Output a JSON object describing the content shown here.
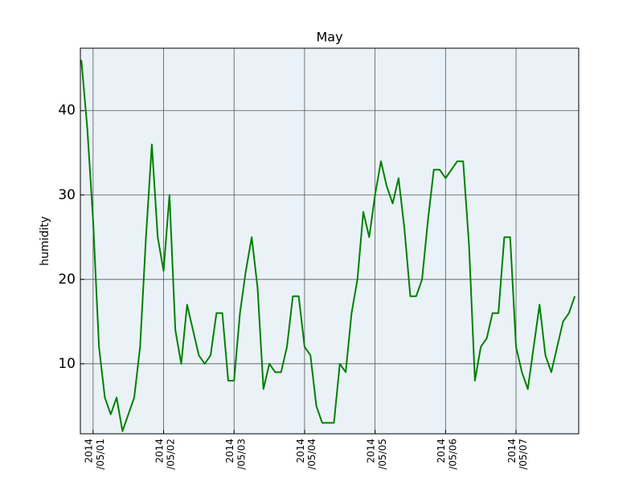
{
  "chart_data": {
    "type": "line",
    "title": "May",
    "y_label": "humidity",
    "x": [
      "2014-04-30T20:00",
      "2014-04-30T22:00",
      "2014-05-01T00:00",
      "2014-05-01T02:00",
      "2014-05-01T04:00",
      "2014-05-01T06:00",
      "2014-05-01T08:00",
      "2014-05-01T10:00",
      "2014-05-01T12:00",
      "2014-05-01T14:00",
      "2014-05-01T16:00",
      "2014-05-01T18:00",
      "2014-05-01T20:00",
      "2014-05-01T22:00",
      "2014-05-02T00:00",
      "2014-05-02T02:00",
      "2014-05-02T04:00",
      "2014-05-02T06:00",
      "2014-05-02T08:00",
      "2014-05-02T10:00",
      "2014-05-02T12:00",
      "2014-05-02T14:00",
      "2014-05-02T16:00",
      "2014-05-02T18:00",
      "2014-05-02T20:00",
      "2014-05-02T22:00",
      "2014-05-03T00:00",
      "2014-05-03T02:00",
      "2014-05-03T04:00",
      "2014-05-03T06:00",
      "2014-05-03T08:00",
      "2014-05-03T10:00",
      "2014-05-03T12:00",
      "2014-05-03T14:00",
      "2014-05-03T16:00",
      "2014-05-03T18:00",
      "2014-05-03T20:00",
      "2014-05-03T22:00",
      "2014-05-04T00:00",
      "2014-05-04T02:00",
      "2014-05-04T04:00",
      "2014-05-04T06:00",
      "2014-05-04T08:00",
      "2014-05-04T10:00",
      "2014-05-04T12:00",
      "2014-05-04T14:00",
      "2014-05-04T16:00",
      "2014-05-04T18:00",
      "2014-05-04T20:00",
      "2014-05-04T22:00",
      "2014-05-05T00:00",
      "2014-05-05T02:00",
      "2014-05-05T04:00",
      "2014-05-05T06:00",
      "2014-05-05T08:00",
      "2014-05-05T10:00",
      "2014-05-05T12:00",
      "2014-05-05T14:00",
      "2014-05-05T16:00",
      "2014-05-05T18:00",
      "2014-05-05T20:00",
      "2014-05-05T22:00",
      "2014-05-06T00:00",
      "2014-05-06T02:00",
      "2014-05-06T04:00",
      "2014-05-06T06:00",
      "2014-05-06T08:00",
      "2014-05-06T10:00",
      "2014-05-06T12:00",
      "2014-05-06T14:00",
      "2014-05-06T16:00",
      "2014-05-06T18:00",
      "2014-05-06T20:00",
      "2014-05-06T22:00",
      "2014-05-07T00:00",
      "2014-05-07T02:00",
      "2014-05-07T04:00",
      "2014-05-07T06:00",
      "2014-05-07T08:00",
      "2014-05-07T10:00",
      "2014-05-07T12:00",
      "2014-05-07T14:00",
      "2014-05-07T16:00",
      "2014-05-07T18:00",
      "2014-05-07T20:00"
    ],
    "values": [
      46,
      38,
      27,
      12,
      6,
      4,
      6,
      2,
      4,
      6,
      12,
      25,
      36,
      25,
      21,
      30,
      14,
      10,
      17,
      14,
      11,
      10,
      11,
      16,
      16,
      8,
      8,
      16,
      21,
      25,
      19,
      7,
      10,
      9,
      9,
      12,
      18,
      18,
      12,
      11,
      5,
      3,
      3,
      3,
      10,
      9,
      16,
      20,
      28,
      25,
      30,
      34,
      31,
      29,
      32,
      26,
      18,
      18,
      20,
      27,
      33,
      33,
      32,
      33,
      34,
      34,
      24,
      8,
      12,
      13,
      16,
      16,
      25,
      25,
      12,
      9,
      7,
      12,
      17,
      11,
      9,
      12,
      15,
      16,
      18
    ],
    "color": "#008000",
    "background": "#eaf2f8",
    "xlim": [
      "2014-04-30T19:40",
      "2014-05-07T21:20"
    ],
    "xticks": [
      {
        "value": "2014-05-01T00:00",
        "label": "2014\n/05/01"
      },
      {
        "value": "2014-05-02T00:00",
        "label": "2014\n/05/02"
      },
      {
        "value": "2014-05-03T00:00",
        "label": "2014\n/05/03"
      },
      {
        "value": "2014-05-04T00:00",
        "label": "2014\n/05/04"
      },
      {
        "value": "2014-05-05T00:00",
        "label": "2014\n/05/05"
      },
      {
        "value": "2014-05-06T00:00",
        "label": "2014\n/05/06"
      },
      {
        "value": "2014-05-07T00:00",
        "label": "2014\n/05/07"
      }
    ],
    "ylim": [
      1.7,
      47.4
    ],
    "yticks": [
      10,
      20,
      30,
      40
    ],
    "grid": true
  }
}
